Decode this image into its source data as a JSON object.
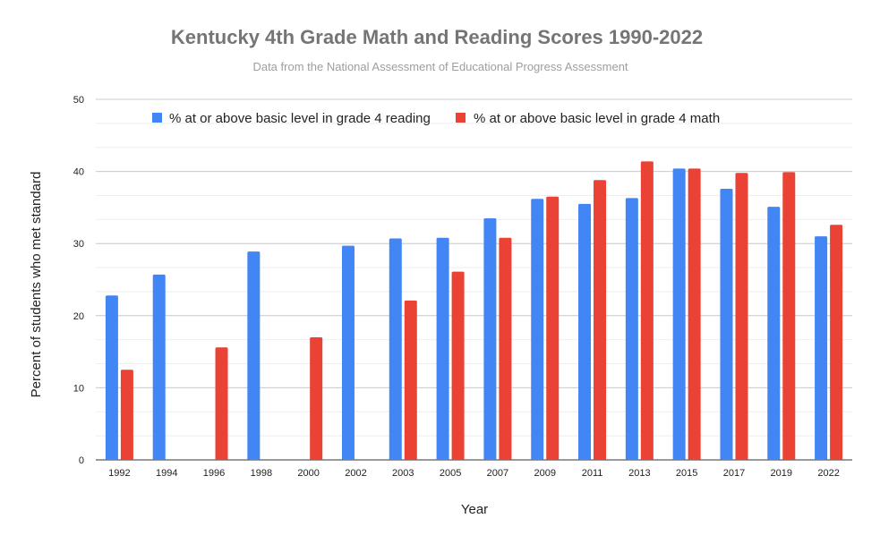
{
  "chart_data": {
    "type": "bar",
    "title": "Kentucky 4th Grade Math and Reading Scores 1990-2022",
    "subtitle": "Data from the National Assessment of Educational Progress Assessment",
    "xlabel": "Year",
    "ylabel": "Percent of students who met standard",
    "ylim": [
      0,
      50
    ],
    "yticks": [
      0,
      10,
      20,
      30,
      40,
      50
    ],
    "grid": true,
    "legend_position": "top",
    "categories": [
      "1992",
      "1994",
      "1996",
      "1998",
      "2000",
      "2002",
      "2003",
      "2005",
      "2007",
      "2009",
      "2011",
      "2013",
      "2015",
      "2017",
      "2019",
      "2022"
    ],
    "series": [
      {
        "name": "% at or above basic level in grade 4 reading",
        "color": "#4285f4",
        "values": [
          22.8,
          25.7,
          null,
          28.9,
          null,
          29.7,
          30.7,
          30.8,
          33.5,
          36.2,
          35.5,
          36.3,
          40.4,
          37.6,
          35.1,
          31.0
        ]
      },
      {
        "name": "% at or above basic level in grade 4 math",
        "color": "#ea4335",
        "values": [
          12.5,
          null,
          15.6,
          null,
          17.0,
          null,
          22.1,
          26.1,
          30.8,
          36.5,
          38.8,
          41.4,
          40.4,
          39.8,
          39.9,
          32.6
        ]
      }
    ]
  }
}
